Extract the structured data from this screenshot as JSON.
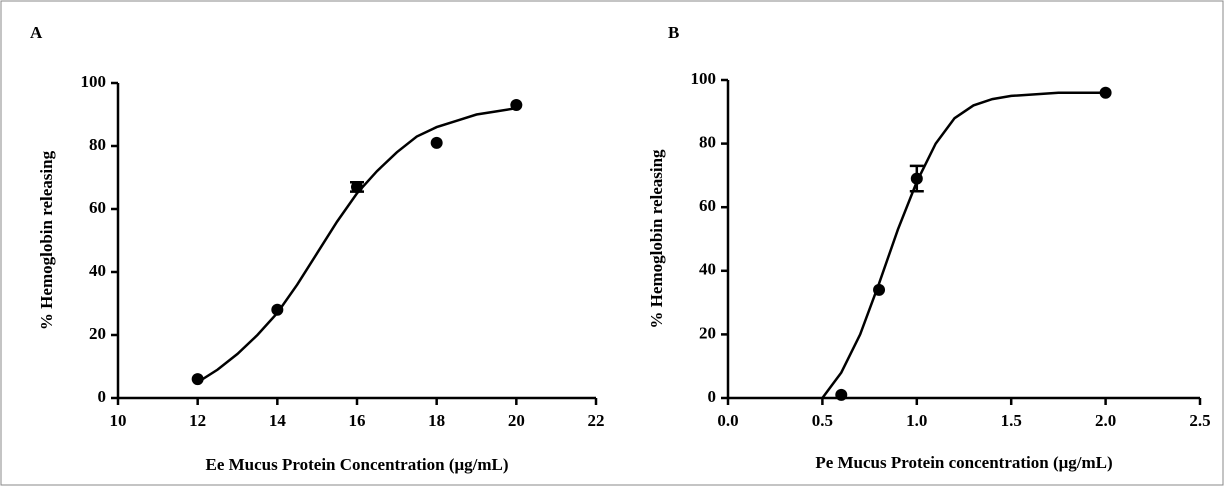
{
  "chart_data": [
    {
      "type": "scatter",
      "panel": "A",
      "xlabel": "Ee Mucus Protein Concentration (μg/mL)",
      "ylabel": "% Hemoglobin releasing",
      "xlim": [
        10,
        22
      ],
      "xticks": [
        10,
        12,
        14,
        16,
        18,
        20,
        22
      ],
      "ylim": [
        0,
        100
      ],
      "yticks": [
        0,
        20,
        40,
        60,
        80,
        100
      ],
      "color": "#000000",
      "points": {
        "x": [
          12,
          14,
          16,
          18,
          20
        ],
        "y": [
          6,
          28,
          67,
          81,
          93
        ],
        "errors": [
          null,
          null,
          1.5,
          null,
          null
        ]
      },
      "fit": {
        "x": [
          12,
          12.5,
          13,
          13.5,
          14,
          14.5,
          15,
          15.5,
          16,
          16.5,
          17,
          17.5,
          18,
          18.5,
          19,
          19.5,
          20
        ],
        "y": [
          5,
          9,
          14,
          20,
          27,
          36,
          46,
          56,
          65,
          72,
          78,
          83,
          86,
          88,
          90,
          91,
          92
        ]
      }
    },
    {
      "type": "scatter",
      "panel": "B",
      "xlabel": "Pe Mucus Protein concentration (μg/mL)",
      "ylabel": "% Hemoglobin releasing",
      "xlim": [
        0,
        2.5
      ],
      "xticks": [
        {
          "value": 0,
          "label": "0.0"
        },
        0.5,
        {
          "value": 1,
          "label": "1.0"
        },
        1.5,
        {
          "value": 2,
          "label": "2.0"
        },
        2.5
      ],
      "ylim": [
        0,
        100
      ],
      "yticks": [
        0,
        20,
        40,
        60,
        80,
        100
      ],
      "color": "#000000",
      "points": {
        "x": [
          0.6,
          0.8,
          1.0,
          2.0
        ],
        "y": [
          1,
          34,
          69,
          96
        ],
        "errors": [
          null,
          null,
          4,
          null
        ]
      },
      "fit": {
        "x": [
          0.5,
          0.6,
          0.7,
          0.8,
          0.9,
          1.0,
          1.1,
          1.2,
          1.3,
          1.4,
          1.5,
          1.75,
          2.0
        ],
        "y": [
          0,
          8,
          20,
          36,
          53,
          68,
          80,
          88,
          92,
          94,
          95,
          96,
          96
        ]
      }
    }
  ]
}
